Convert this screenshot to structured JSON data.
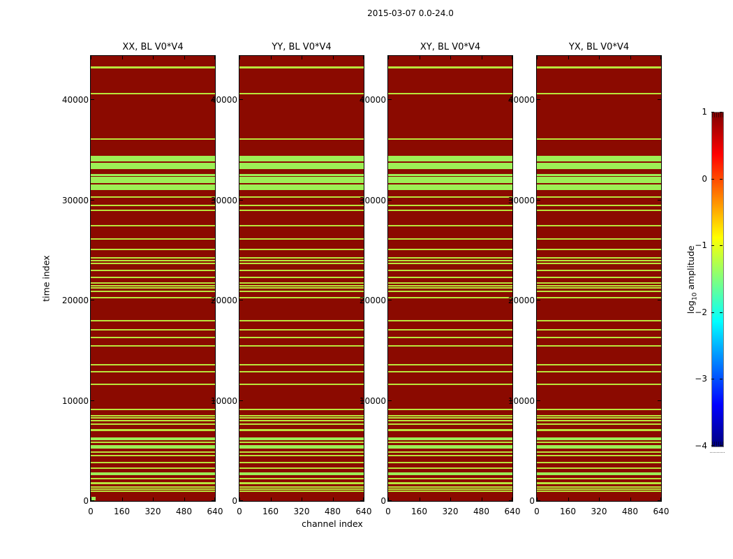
{
  "figure": {
    "title": "2015-03-07 0.0-24.0",
    "background": "#ffffff"
  },
  "axes": {
    "xlabel": "channel index",
    "ylabel": "time index",
    "x_ticks": [
      0,
      160,
      320,
      480,
      640
    ],
    "y_ticks": [
      0,
      10000,
      20000,
      30000,
      40000
    ],
    "x_range": [
      0,
      640
    ],
    "y_range": [
      0,
      44400
    ]
  },
  "panels": [
    {
      "title": "XX, BL V0*V4",
      "origin_marker": true
    },
    {
      "title": "YY, BL V0*V4",
      "origin_marker": false
    },
    {
      "title": "XY, BL V0*V4",
      "origin_marker": false
    },
    {
      "title": "YX, BL V0*V4",
      "origin_marker": false
    }
  ],
  "colorbar": {
    "label": "log10 amplitude",
    "label_log": "log",
    "label_sub": "10",
    "label_rest": " amplitude",
    "ticks": [
      "1",
      "0",
      "−1",
      "−2",
      "−3",
      "−4"
    ],
    "tick_values": [
      1,
      0,
      -1,
      -2,
      -3,
      -4
    ],
    "colormap": "jet",
    "gradient_stops": [
      "#7f0000",
      "#ff0000",
      "#ff7f00",
      "#ffff00",
      "#7fff7f",
      "#00ffff",
      "#007fff",
      "#0000ff",
      "#00007f"
    ]
  },
  "colors": {
    "data_background": "#8b0a00",
    "stripe_thin": "#b9e53b",
    "stripe_band": "#9dee55",
    "axis": "#000000"
  },
  "chart_data": {
    "type": "heatmap",
    "title": "2015-03-07 0.0-24.0",
    "subplot_titles": [
      "XX, BL V0*V4",
      "YY, BL V0*V4",
      "XY, BL V0*V4",
      "YX, BL V0*V4"
    ],
    "xlabel": "channel index",
    "ylabel": "time index",
    "colorbar_label": "log10 amplitude",
    "x_range": [
      0,
      640
    ],
    "y_range": [
      0,
      44400
    ],
    "value_range_log10": [
      -4,
      1
    ],
    "background_value_log10": 1,
    "stripe_value_log10": -1.3,
    "note": "Four identical waterfall panels: saturated dark-red data (log10 amp ~1) with horizontal yellow-green flagged/low-amplitude time bands spanning all channels.",
    "flagged_time_bands": [
      [
        43150,
        43350,
        "thin"
      ],
      [
        40550,
        40700,
        "thin"
      ],
      [
        36030,
        36170,
        "thin"
      ],
      [
        33870,
        34450,
        "band"
      ],
      [
        33100,
        33730,
        "band"
      ],
      [
        32440,
        32620,
        "band"
      ],
      [
        31710,
        32310,
        "band"
      ],
      [
        31020,
        31580,
        "band"
      ],
      [
        30250,
        30390,
        "thin"
      ],
      [
        29410,
        29550,
        "thin"
      ],
      [
        28930,
        29070,
        "thin"
      ],
      [
        27390,
        27530,
        "thin"
      ],
      [
        26070,
        26210,
        "thin"
      ],
      [
        25020,
        25160,
        "thin"
      ],
      [
        24190,
        24330,
        "thin"
      ],
      [
        23910,
        24050,
        "thin"
      ],
      [
        23630,
        23770,
        "thin"
      ],
      [
        22930,
        23070,
        "thin"
      ],
      [
        22230,
        22370,
        "thin"
      ],
      [
        21680,
        21820,
        "thin"
      ],
      [
        21400,
        21540,
        "thin"
      ],
      [
        21190,
        21330,
        "thin"
      ],
      [
        20840,
        20980,
        "thin"
      ],
      [
        20210,
        20350,
        "thin"
      ],
      [
        17910,
        18050,
        "thin"
      ],
      [
        17010,
        17150,
        "thin"
      ],
      [
        16240,
        16380,
        "thin"
      ],
      [
        15400,
        15540,
        "thin"
      ],
      [
        13520,
        13660,
        "thin"
      ],
      [
        12820,
        12960,
        "thin"
      ],
      [
        11570,
        11710,
        "thin"
      ],
      [
        9060,
        9200,
        "thin"
      ],
      [
        8430,
        8570,
        "thin"
      ],
      [
        8220,
        8360,
        "thin"
      ],
      [
        7950,
        8090,
        "thin"
      ],
      [
        7600,
        7740,
        "thin"
      ],
      [
        6970,
        7180,
        "thin"
      ],
      [
        6060,
        6340,
        "band"
      ],
      [
        5790,
        5930,
        "thin"
      ],
      [
        5230,
        5580,
        "band"
      ],
      [
        4810,
        4950,
        "thin"
      ],
      [
        4460,
        4600,
        "thin"
      ],
      [
        3760,
        3900,
        "thin"
      ],
      [
        3210,
        3350,
        "thin"
      ],
      [
        2580,
        2860,
        "band"
      ],
      [
        2160,
        2300,
        "thin"
      ],
      [
        1670,
        1880,
        "thin"
      ],
      [
        1320,
        1460,
        "thin"
      ],
      [
        1120,
        1250,
        "thin"
      ],
      [
        910,
        1050,
        "thin"
      ]
    ],
    "origin_marker_xx_panel": {
      "time": [
        0,
        330
      ],
      "channels": [
        0,
        20
      ]
    }
  }
}
